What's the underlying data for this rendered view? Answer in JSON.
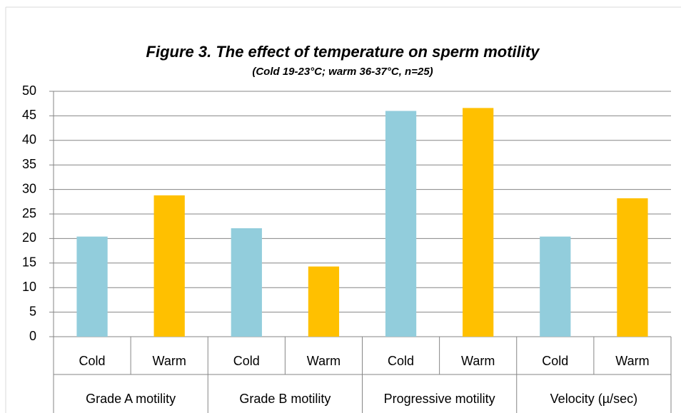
{
  "chart_data": {
    "type": "bar",
    "title": "Figure 3. The effect of temperature on sperm motility",
    "subtitle": "(Cold 19-23°C; warm 36-37°C, n=25)",
    "categories": [
      "Cold",
      "Warm",
      "Cold",
      "Warm",
      "Cold",
      "Warm",
      "Cold",
      "Warm"
    ],
    "groups": [
      "Grade A motility",
      "Grade B motility",
      "Progressive motility",
      "Velocity (µ/sec)"
    ],
    "values": [
      20.4,
      28.8,
      22.1,
      14.3,
      46,
      46.6,
      20.4,
      28.2
    ],
    "colors": [
      "#92cddc",
      "#ffc000",
      "#92cddc",
      "#ffc000",
      "#92cddc",
      "#ffc000",
      "#92cddc",
      "#ffc000"
    ],
    "ylim": [
      0,
      50
    ],
    "yticks": [
      0,
      5,
      10,
      15,
      20,
      25,
      30,
      35,
      40,
      45,
      50
    ],
    "grid": true
  }
}
